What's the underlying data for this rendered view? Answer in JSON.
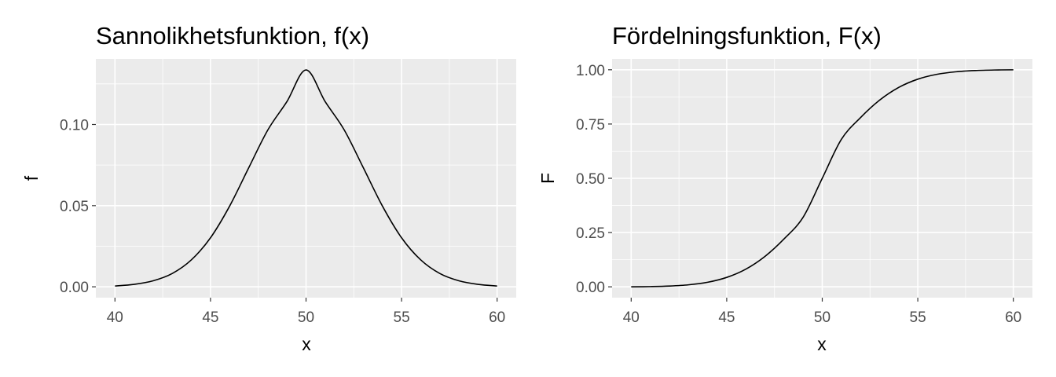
{
  "chart_data": [
    {
      "type": "line",
      "title": "Sannolikhetsfunktion, f(x)",
      "xlabel": "x",
      "ylabel": "f",
      "xlim": [
        39,
        61
      ],
      "ylim": [
        -0.0067,
        0.1404
      ],
      "x_ticks": [
        40,
        45,
        50,
        55,
        60
      ],
      "x_tick_labels": [
        "40",
        "45",
        "50",
        "55",
        "60"
      ],
      "y_ticks": [
        0.0,
        0.05,
        0.1
      ],
      "y_tick_labels": [
        "0.00",
        "0.05",
        "0.10"
      ],
      "grid": true,
      "series": [
        {
          "color": "#000000",
          "x": [
            40,
            41,
            42,
            43,
            44,
            45,
            46,
            47,
            48,
            49,
            50,
            51,
            52,
            53,
            54,
            55,
            56,
            57,
            58,
            59,
            60
          ],
          "y": [
            0.0005,
            0.0015,
            0.0037,
            0.0082,
            0.0166,
            0.0302,
            0.0497,
            0.0733,
            0.0966,
            0.1141,
            0.1336,
            0.1141,
            0.0966,
            0.0733,
            0.0497,
            0.0302,
            0.0166,
            0.0082,
            0.0037,
            0.0015,
            0.0005
          ]
        }
      ]
    },
    {
      "type": "line",
      "title": "Fördelningsfunktion, F(x)",
      "xlabel": "x",
      "ylabel": "F",
      "xlim": [
        39,
        61
      ],
      "ylim": [
        -0.05,
        1.05
      ],
      "x_ticks": [
        40,
        45,
        50,
        55,
        60
      ],
      "x_tick_labels": [
        "40",
        "45",
        "50",
        "55",
        "60"
      ],
      "y_ticks": [
        0.0,
        0.25,
        0.5,
        0.75,
        1.0
      ],
      "y_tick_labels": [
        "0.00",
        "0.25",
        "0.50",
        "0.75",
        "1.00"
      ],
      "grid": true,
      "series": [
        {
          "color": "#000000",
          "x": [
            40,
            41,
            42,
            43,
            44,
            45,
            46,
            47,
            48,
            49,
            50,
            51,
            52,
            53,
            54,
            55,
            56,
            57,
            58,
            59,
            60
          ],
          "y": [
            0.0,
            0.0011,
            0.0036,
            0.0092,
            0.021,
            0.0434,
            0.0815,
            0.1401,
            0.2207,
            0.3208,
            0.5,
            0.6792,
            0.7793,
            0.8599,
            0.9185,
            0.9566,
            0.979,
            0.9908,
            0.9964,
            0.9989,
            0.9998
          ]
        }
      ]
    }
  ]
}
